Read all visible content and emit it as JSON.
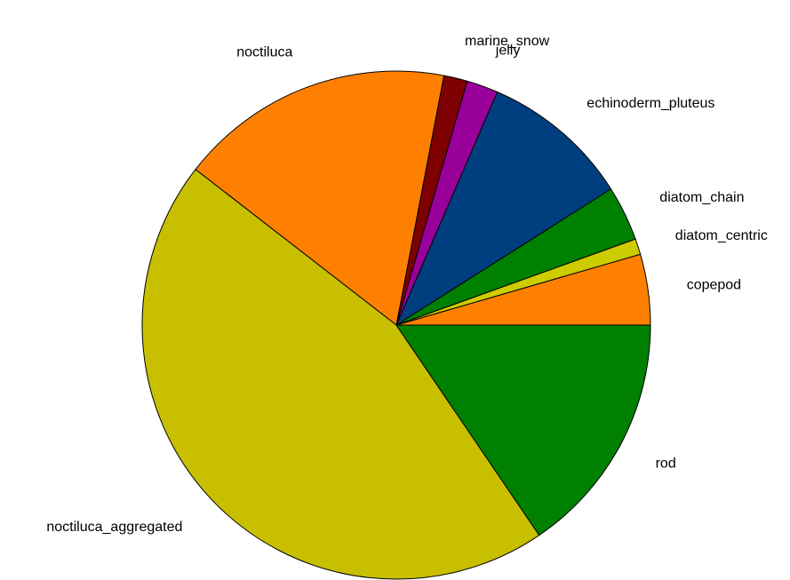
{
  "chart_data": {
    "type": "pie",
    "title": "",
    "legend": "none",
    "start_angle_deg": 0,
    "direction": "counterclockwise",
    "slices": [
      {
        "label": "copepod",
        "value": 4.5,
        "color": "#ff8000"
      },
      {
        "label": "diatom_centric",
        "value": 1.0,
        "color": "#cccc00"
      },
      {
        "label": "diatom_chain",
        "value": 3.5,
        "color": "#008000"
      },
      {
        "label": "echinoderm_pluteus",
        "value": 9.5,
        "color": "#003f7f"
      },
      {
        "label": "jelly",
        "value": 2.0,
        "color": "#990099"
      },
      {
        "label": "marine_snow",
        "value": 1.5,
        "color": "#7f0000"
      },
      {
        "label": "noctiluca",
        "value": 17.5,
        "color": "#ff8000"
      },
      {
        "label": "noctiluca_aggregated",
        "value": 45.0,
        "color": "#c8bf00"
      },
      {
        "label": "rod",
        "value": 15.5,
        "color": "#008000"
      }
    ]
  }
}
